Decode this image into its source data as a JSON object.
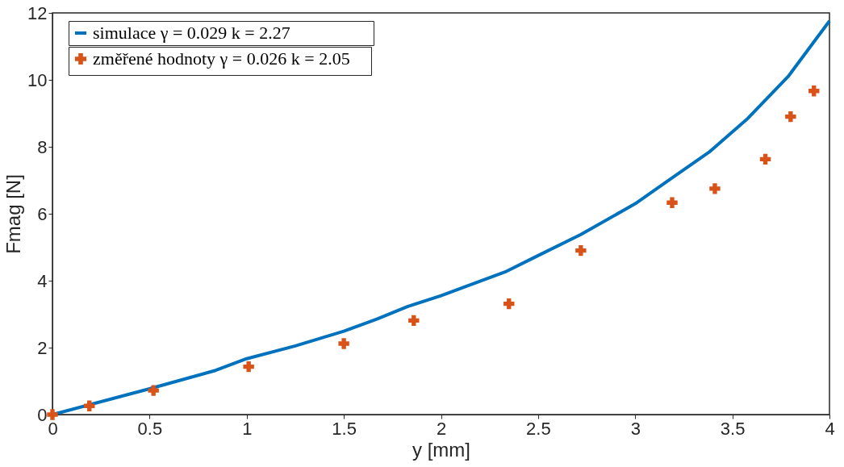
{
  "chart_data": {
    "type": "line",
    "xlabel": "y [mm]",
    "ylabel": "Fmag [N]",
    "xlim": [
      0,
      4
    ],
    "ylim": [
      0,
      12
    ],
    "xticks": [
      0,
      0.5,
      1,
      1.5,
      2,
      2.5,
      3,
      3.5,
      4
    ],
    "yticks": [
      0,
      2,
      4,
      6,
      8,
      10,
      12
    ],
    "grid": false,
    "legend": "top left",
    "series": [
      {
        "name": "simulace                 γ = 0.029   k = 2.27",
        "color": "#0072bd",
        "line_style": "solid",
        "marker": "none",
        "x": [
          0,
          0.5,
          0.84,
          1.0,
          1.25,
          1.5,
          1.67,
          1.83,
          2.0,
          2.33,
          2.5,
          2.72,
          3.0,
          3.17,
          3.38,
          3.58,
          3.79,
          4.0
        ],
        "values": [
          0,
          0.77,
          1.32,
          1.67,
          2.05,
          2.49,
          2.85,
          3.23,
          3.55,
          4.26,
          4.75,
          5.38,
          6.3,
          6.99,
          7.84,
          8.85,
          10.12,
          11.76
        ]
      },
      {
        "name": "změřené hodnoty   γ = 0.026   k = 2.05",
        "type": "scatter",
        "color": "#d95319",
        "marker": "cross",
        "x": [
          0,
          0.19,
          0.52,
          1.01,
          1.5,
          1.86,
          2.35,
          2.72,
          3.19,
          3.41,
          3.67,
          3.8,
          3.92
        ],
        "values": [
          0,
          0.26,
          0.72,
          1.43,
          2.12,
          2.81,
          3.31,
          4.9,
          6.33,
          6.75,
          7.63,
          8.9,
          9.67
        ]
      }
    ]
  }
}
